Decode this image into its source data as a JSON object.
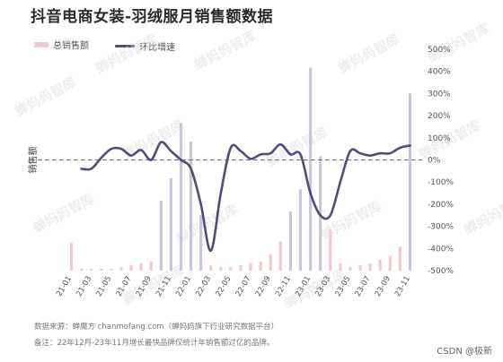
{
  "title": "抖音电商女装-羽绒服月销售额数据",
  "legend": {
    "bar_label": "总销售额",
    "line_label": "环比增速"
  },
  "colors": {
    "bar_normal": "#f2c9cc",
    "bar_peak": "#c9c4dc",
    "line": "#57497a",
    "zero_line": "#777777",
    "axis_text": "#555555"
  },
  "watermark": "蝉妈妈智库",
  "notes": {
    "source": "数据来源：蝉魔方 chanmofang.com（蝉妈妈旗下行业研究数据平台）",
    "remark": "备注：22年12月-23年11月增长最快品牌仅统计年销售额过亿的品牌。"
  },
  "credit": "CSDN @极新",
  "chart_data": {
    "type": "bar",
    "title": "抖音电商女装-羽绒服月销售额数据",
    "ylabel_left": "销售额",
    "ylim_right": [
      -500,
      500
    ],
    "right_ticks": [
      "500%",
      "400%",
      "300%",
      "200%",
      "100%",
      "0%",
      "-100%",
      "-200%",
      "-300%",
      "-400%",
      "-500%"
    ],
    "xtick_labels": [
      "21-01",
      "21-03",
      "21-05",
      "21-07",
      "21-09",
      "21-11",
      "22-01",
      "22-03",
      "22-05",
      "22-07",
      "22-09",
      "22-11",
      "23-01",
      "23-03",
      "23-05",
      "23-07",
      "23-09",
      "23-11"
    ],
    "categories": [
      "21-01",
      "21-02",
      "21-03",
      "21-04",
      "21-05",
      "21-06",
      "21-07",
      "21-08",
      "21-09",
      "21-10",
      "21-11",
      "21-12",
      "22-01",
      "22-02",
      "22-03",
      "22-04",
      "22-05",
      "22-06",
      "22-07",
      "22-08",
      "22-09",
      "22-10",
      "22-11",
      "22-12",
      "23-01",
      "23-02",
      "23-03",
      "23-04",
      "23-05",
      "23-06",
      "23-07",
      "23-08",
      "23-09",
      "23-10",
      "23-11"
    ],
    "series": [
      {
        "name": "总销售额",
        "type": "bar",
        "values": [
          15,
          1,
          1,
          1,
          1,
          2,
          3,
          4,
          5,
          38,
          50,
          80,
          70,
          30,
          3,
          2,
          2,
          3,
          4,
          5,
          9,
          16,
          32,
          44,
          110,
          62,
          22,
          4,
          2,
          3,
          4,
          6,
          8,
          13,
          96
        ]
      },
      {
        "name": "环比增速",
        "type": "line",
        "values": [
          null,
          -40,
          -40,
          10,
          50,
          50,
          20,
          45,
          0,
          80,
          40,
          0,
          -40,
          -200,
          -410,
          -150,
          55,
          40,
          5,
          25,
          30,
          70,
          25,
          25,
          -150,
          -250,
          -250,
          -100,
          40,
          30,
          20,
          30,
          30,
          55,
          65
        ]
      }
    ]
  }
}
